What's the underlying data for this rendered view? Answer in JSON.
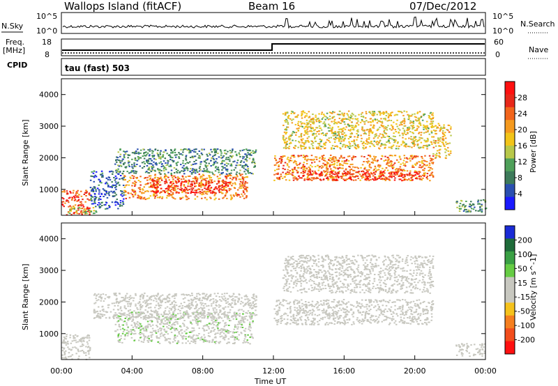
{
  "header": {
    "title": "Wallops Island (fitACF)",
    "beam": "Beam 16",
    "date": "07/Dec/2012"
  },
  "status_panel": {
    "nsky_label": "N.Sky",
    "nsky_ticks": [
      "10^5",
      "10^0"
    ],
    "nsearch_label": "N.Search",
    "nsearch_ticks": [
      "10^5",
      "10^0"
    ],
    "freq_label": "Freq.",
    "freq_unit": "[MHz]",
    "freq_ticks": [
      "18",
      "8"
    ],
    "nave_label": "Nave",
    "nave_ticks": [
      "60",
      "0"
    ],
    "cpid_label": "CPID",
    "cpid_text": "tau (fast) 503"
  },
  "colors": {
    "power_scale": [
      "#1a1aff",
      "#2a4fb0",
      "#3d7a5a",
      "#4fa05a",
      "#b8c84a",
      "#f2c419",
      "#f59a1f",
      "#f2651c",
      "#e8281a",
      "#ff1010"
    ],
    "velocity_scale": [
      "#1a2bd6",
      "#1f6b3a",
      "#3aa044",
      "#66cc44",
      "#c8c8c0",
      "#c8c8c0",
      "#f5c21c",
      "#f57f1f",
      "#f24d1c",
      "#ff1010"
    ]
  },
  "chart_data": [
    {
      "type": "heatmap",
      "name": "power",
      "ylabel": "Slant Range [km]",
      "xlabel": "",
      "x_range": [
        0,
        24
      ],
      "ylim": [
        180,
        4500
      ],
      "yticks": [
        "1000",
        "2000",
        "3000",
        "4000"
      ],
      "colorbar_label": "Power [dB]",
      "colorbar_ticks": [
        "4",
        "8",
        "12",
        "16",
        "20",
        "24",
        "28"
      ],
      "colorbar_range": [
        0,
        32
      ],
      "features": [
        {
          "t0": 0.0,
          "t1": 1.6,
          "r0": 200,
          "r1": 1000,
          "value": 26
        },
        {
          "t0": 0.3,
          "t1": 2.0,
          "r0": 250,
          "r1": 450,
          "value": 14
        },
        {
          "t0": 1.6,
          "t1": 3.5,
          "r0": 400,
          "r1": 1600,
          "value": 6
        },
        {
          "t0": 3.5,
          "t1": 10.5,
          "r0": 700,
          "r1": 1500,
          "value": 22
        },
        {
          "t0": 5.0,
          "t1": 9.5,
          "r0": 900,
          "r1": 1300,
          "value": 28
        },
        {
          "t0": 3.0,
          "t1": 11.0,
          "r0": 1500,
          "r1": 2300,
          "value": 9
        },
        {
          "t0": 12.0,
          "t1": 21.0,
          "r0": 1300,
          "r1": 2100,
          "value": 22
        },
        {
          "t0": 13.0,
          "t1": 20.5,
          "r0": 1300,
          "r1": 1600,
          "value": 28
        },
        {
          "t0": 12.5,
          "t1": 21.0,
          "r0": 2300,
          "r1": 3500,
          "value": 17
        },
        {
          "t0": 21.0,
          "t1": 22.0,
          "r0": 2000,
          "r1": 3100,
          "value": 18
        },
        {
          "t0": 22.3,
          "t1": 24.0,
          "r0": 300,
          "r1": 700,
          "value": 10
        }
      ]
    },
    {
      "type": "heatmap",
      "name": "velocity",
      "ylabel": "Slant Range [km]",
      "xlabel": "Time UT",
      "x_range": [
        0,
        24
      ],
      "xticks": [
        "00:00",
        "04:00",
        "08:00",
        "12:00",
        "16:00",
        "20:00",
        "00:00"
      ],
      "ylim": [
        180,
        4500
      ],
      "yticks": [
        "1000",
        "2000",
        "3000",
        "4000"
      ],
      "colorbar_label": "Velocity [m s^-1]",
      "colorbar_ticks": [
        "200",
        "100",
        "50",
        "15",
        "-15",
        "-50",
        "-100",
        "-200"
      ],
      "features": [
        {
          "t0": 0.0,
          "t1": 1.6,
          "r0": 200,
          "r1": 1000,
          "value": 0
        },
        {
          "t0": 3.0,
          "t1": 10.8,
          "r0": 700,
          "r1": 1700,
          "value": 40
        },
        {
          "t0": 1.8,
          "t1": 11.0,
          "r0": 1500,
          "r1": 2300,
          "value": 35
        },
        {
          "t0": 12.0,
          "t1": 21.0,
          "r0": 1300,
          "r1": 2100,
          "value": 0
        },
        {
          "t0": 12.5,
          "t1": 21.0,
          "r0": 2300,
          "r1": 3500,
          "value": 0
        },
        {
          "t0": 22.3,
          "t1": 24.0,
          "r0": 300,
          "r1": 700,
          "value": 5
        }
      ]
    }
  ]
}
